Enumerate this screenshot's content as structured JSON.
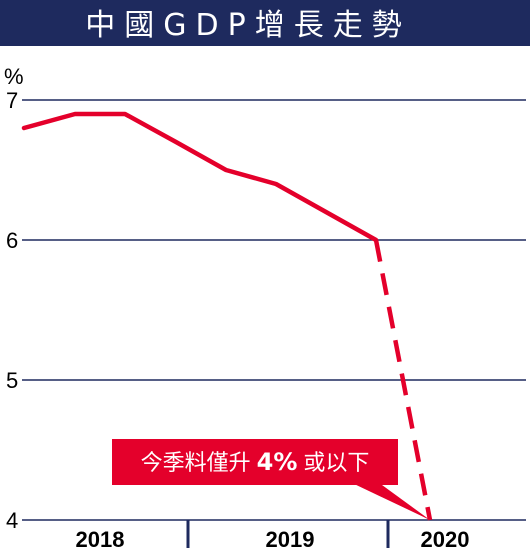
{
  "chart_data": {
    "type": "line",
    "title": "中國GDP增長走勢",
    "ylabel": "%",
    "ylim": [
      4,
      7
    ],
    "yticks": [
      "7",
      "6",
      "5",
      "4"
    ],
    "categories": [
      "2018",
      "2019",
      "2020"
    ],
    "series": [
      {
        "style": "solid",
        "points": [
          {
            "x": "2018 Q1",
            "y": 6.8
          },
          {
            "x": "2018 Q2",
            "y": 6.9
          },
          {
            "x": "2018 Q3",
            "y": 6.9
          },
          {
            "x": "2018 Q4",
            "y": 6.7
          },
          {
            "x": "2019 Q1",
            "y": 6.5
          },
          {
            "x": "2019 Q2",
            "y": 6.4
          },
          {
            "x": "2019 Q3",
            "y": 6.2
          },
          {
            "x": "2019 Q4",
            "y": 6.0
          }
        ]
      },
      {
        "style": "dashed",
        "points": [
          {
            "x": "2019 Q4",
            "y": 6.0
          },
          {
            "x": "2020 Q1",
            "y": 4.0
          }
        ]
      }
    ],
    "annotation": {
      "prefix": "今季料僅升",
      "value": "4%",
      "suffix": "或以下"
    },
    "grid": true
  },
  "colors": {
    "title_bar": "#1e2a5e",
    "line": "#e4002b",
    "grid": "#1e2a5e"
  }
}
